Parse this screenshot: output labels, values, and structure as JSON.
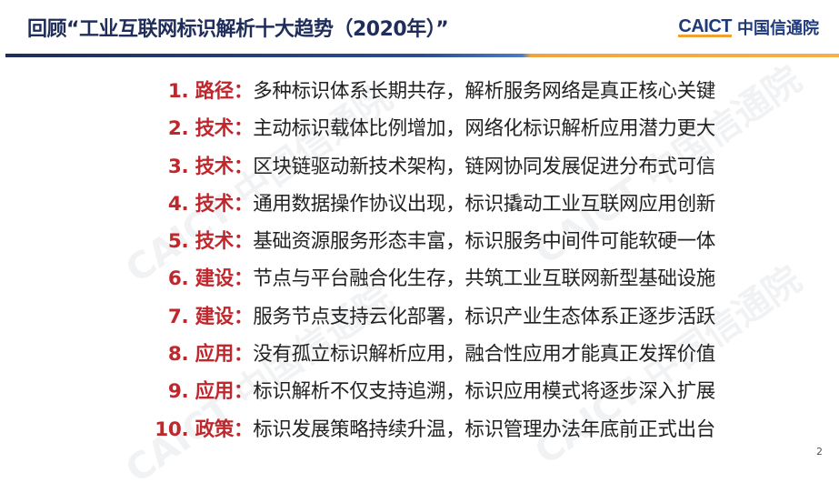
{
  "header": {
    "title": "回顾“工业互联网标识解析十大趋势（2020年）”",
    "logo_en": "CAICT",
    "logo_cn": "中国信通院"
  },
  "items": [
    {
      "tag": "1. 路径：",
      "text": "多种标识体系长期共存，解析服务网络是真正核心关键"
    },
    {
      "tag": "2. 技术：",
      "text": "主动标识载体比例增加，网络化标识解析应用潜力更大"
    },
    {
      "tag": "3. 技术：",
      "text": "区块链驱动新技术架构，链网协同发展促进分布式可信"
    },
    {
      "tag": "4. 技术：",
      "text": "通用数据操作协议出现，标识撬动工业互联网应用创新"
    },
    {
      "tag": "5. 技术：",
      "text": "基础资源服务形态丰富，标识服务中间件可能软硬一体"
    },
    {
      "tag": "6. 建设：",
      "text": "节点与平台融合化生存，共筑工业互联网新型基础设施"
    },
    {
      "tag": "7. 建设：",
      "text": "服务节点支持云化部署，标识产业生态体系正逐步活跃"
    },
    {
      "tag": "8. 应用：",
      "text": "没有孤立标识解析应用，融合性应用才能真正发挥价值"
    },
    {
      "tag": "9. 应用：",
      "text": "标识解析不仅支持追溯，标识应用模式将逐步深入扩展"
    },
    {
      "tag": "10. 政策：",
      "text": "标识发展策略持续升温，标识管理办法年底前正式出台"
    }
  ],
  "watermark": "CAICT 中国信通院",
  "page_number": "2",
  "colors": {
    "title": "#1f2d5a",
    "accent_red": "#c0272d",
    "rule_blue": "#1f2d5a",
    "rule_orange": "#f5b04a"
  }
}
